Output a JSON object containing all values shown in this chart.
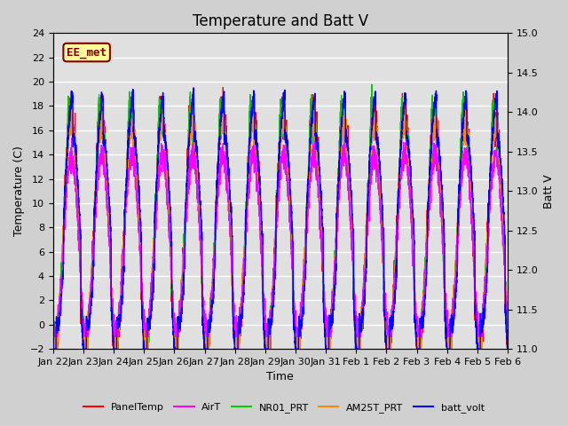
{
  "title": "Temperature and Batt V",
  "xlabel": "Time",
  "ylabel_left": "Temperature (C)",
  "ylabel_right": "Batt V",
  "ylim_left": [
    -2,
    24
  ],
  "ylim_right": [
    11.0,
    15.0
  ],
  "yticks_left": [
    -2,
    0,
    2,
    4,
    6,
    8,
    10,
    12,
    14,
    16,
    18,
    20,
    22,
    24
  ],
  "yticks_right": [
    11.0,
    11.5,
    12.0,
    12.5,
    13.0,
    13.5,
    14.0,
    14.5,
    15.0
  ],
  "xtick_labels": [
    "Jan 22",
    "Jan 23",
    "Jan 24",
    "Jan 25",
    "Jan 26",
    "Jan 27",
    "Jan 28",
    "Jan 29",
    "Jan 30",
    "Jan 31",
    "Feb 1",
    "Feb 2",
    "Feb 3",
    "Feb 4",
    "Feb 5",
    "Feb 6"
  ],
  "annotation_text": "EE_met",
  "annotation_color": "#800000",
  "annotation_bg": "#ffff99",
  "annotation_border": "#800000",
  "fig_bg_color": "#d0d0d0",
  "plot_bg": "#e0e0e0",
  "line_colors": {
    "PanelTemp": "#ff0000",
    "AirT": "#ff00ff",
    "NR01_PRT": "#00cc00",
    "AM25T_PRT": "#ff8800",
    "batt_volt": "#0000ff"
  },
  "legend_entries": [
    "PanelTemp",
    "AirT",
    "NR01_PRT",
    "AM25T_PRT",
    "batt_volt"
  ],
  "n_days": 16,
  "grid_color": "#ffffff",
  "title_fontsize": 12,
  "label_fontsize": 9,
  "tick_fontsize": 8
}
